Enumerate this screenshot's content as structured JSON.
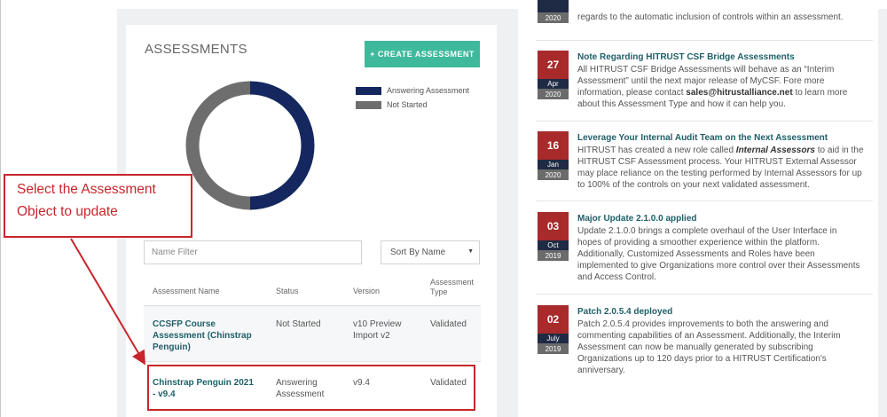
{
  "assessments": {
    "title": "ASSESSMENTS",
    "create_button": "+ CREATE ASSESSMENT",
    "chart_data": {
      "type": "pie",
      "categories": [
        "Answering Assessment",
        "Not Started"
      ],
      "values": [
        1,
        1
      ],
      "colors": [
        "#14275e",
        "#6e6e6e"
      ],
      "legend": "top-right"
    },
    "legend": [
      {
        "label": "Answering Assessment",
        "color": "#14275e"
      },
      {
        "label": "Not Started",
        "color": "#6e6e6e"
      }
    ],
    "filter_placeholder": "Name Filter",
    "sort_label": "Sort By Name",
    "columns": {
      "name": "Assessment Name",
      "status": "Status",
      "version": "Version",
      "type_line1": "Assessment",
      "type_line2": "Type"
    },
    "rows": [
      {
        "name_l1": "CCSFP Course",
        "name_l2": "Assessment (Chinstrap",
        "name_l3": "Penguin)",
        "status_l1": "Not Started",
        "status_l2": "",
        "version_l1": "v10 Preview",
        "version_l2": "Import v2",
        "type": "Validated"
      },
      {
        "name_l1": "Chinstrap Penguin 2021",
        "name_l2": "- v9.4",
        "name_l3": "",
        "status_l1": "Answering",
        "status_l2": "Assessment",
        "version_l1": "v9.4",
        "version_l2": "",
        "type": "Validated"
      }
    ]
  },
  "news": [
    {
      "day": "",
      "month": "",
      "year": "2020",
      "title": "",
      "body": [
        "regards to the automatic inclusion of controls within an assessment."
      ]
    },
    {
      "day": "27",
      "month": "Apr",
      "year": "2020",
      "title": "Note Regarding HITRUST CSF Bridge Assessments",
      "body": [
        "All HITRUST CSF Bridge Assessments will behave as an “Interim",
        "Assessment” until the next major release of MyCSF. Fore more",
        "information, please contact",
        "to learn more",
        "about this Assessment Type and how it can help you."
      ],
      "email": "sales@hitrustalliance.net"
    },
    {
      "day": "16",
      "month": "Jan",
      "year": "2020",
      "title": "Leverage Your Internal Audit Team on the Next Assessment",
      "body_pre": "HITRUST has created a new role called",
      "body_em": "Internal Assessors",
      "body_post": "to aid in the",
      "body": [
        "HITRUST CSF Assessment process. Your HITRUST External Assessor",
        "may place reliance on the testing performed by Internal Assessors for up",
        "to 100% of the controls on your next validated assessment."
      ]
    },
    {
      "day": "03",
      "month": "Oct",
      "year": "2019",
      "title": "Major Update 2.1.0.0 applied",
      "body": [
        "Update 2.1.0.0 brings a complete overhaul of the User Interface in",
        "hopes of providing a smoother experience within the platform.",
        "Additionally, Customized Assessments and Roles have been",
        "implemented to give Organizations more control over their Assessments",
        "and Access Control."
      ]
    },
    {
      "day": "02",
      "month": "July",
      "year": "2019",
      "title": "Patch 2.0.5.4 deployed",
      "body": [
        "Patch 2.0.5.4 provides improvements to both the answering and",
        "commenting capabilities of an Assessment. Additionally, the Interim",
        "Assessment can now be manually generated by subscribing",
        "Organizations up to 120 days prior to a HITRUST Certification's",
        "anniversary."
      ]
    }
  ],
  "annotation": {
    "line1": "Select the Assessment",
    "line2": "Object to update",
    "color": "#c8262c"
  }
}
